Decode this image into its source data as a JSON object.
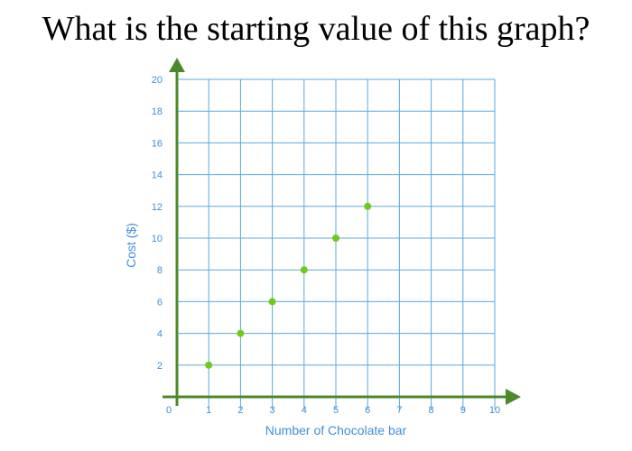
{
  "question": "What is the starting value of this graph?",
  "chart_data": {
    "type": "scatter",
    "title": "",
    "xlabel": "Number of Chocolate bar",
    "ylabel": "Cost ($)",
    "x": [
      1,
      2,
      3,
      4,
      5,
      6
    ],
    "y": [
      2,
      4,
      6,
      8,
      10,
      12
    ],
    "xlim": [
      0,
      10
    ],
    "ylim": [
      0,
      20
    ],
    "xticks": [
      "0",
      "1",
      "2",
      "3",
      "4",
      "5",
      "6",
      "7",
      "8",
      "9",
      "10"
    ],
    "yticks": [
      "2",
      "4",
      "6",
      "8",
      "10",
      "12",
      "14",
      "16",
      "18",
      "20"
    ],
    "grid": true,
    "colors": {
      "grid": "#5aa8e0",
      "axis": "#4a8a2a",
      "point": "#6ccc1a",
      "label": "#3e8fd8"
    }
  }
}
